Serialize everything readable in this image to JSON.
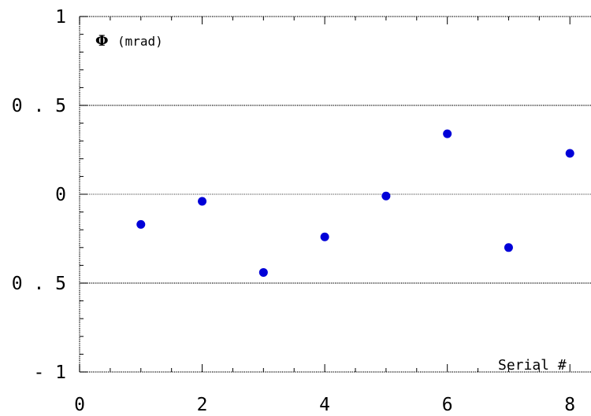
{
  "chart_data": {
    "type": "scatter",
    "ylabel_symbol": "Φ",
    "ylabel_unit": "(mrad)",
    "xlabel": "Serial #",
    "xlim": [
      0,
      9
    ],
    "ylim": [
      -1,
      1
    ],
    "x_ticks": [
      0,
      2,
      4,
      6,
      8
    ],
    "x_tick_labels": [
      "0",
      "2",
      "4",
      "6",
      "8"
    ],
    "y_ticks": [
      -1,
      -0.5,
      0,
      0.5,
      1
    ],
    "y_tick_labels": [
      "- 1",
      "- 0 . 5",
      "0",
      "0 . 5",
      "1"
    ],
    "gridlines_y": [
      -0.5,
      0,
      0.5
    ],
    "x": [
      1,
      2,
      3,
      4,
      5,
      6,
      7,
      8
    ],
    "y": [
      -0.17,
      -0.04,
      -0.44,
      -0.24,
      -0.01,
      0.34,
      -0.3,
      0.23
    ],
    "marker_color": "#0000d8"
  }
}
